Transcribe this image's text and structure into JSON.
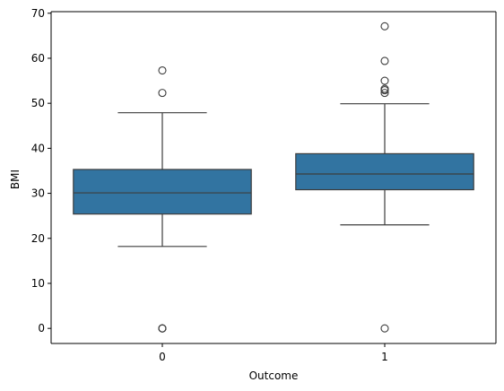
{
  "chart_data": {
    "type": "box",
    "xlabel": "Outcome",
    "ylabel": "BMI",
    "categories": [
      "0",
      "1"
    ],
    "ylim": [
      -3.35,
      70.35
    ],
    "yticks": [
      0,
      10,
      20,
      30,
      40,
      50,
      60,
      70
    ],
    "grid": false,
    "colors": {
      "box_fill": "#3274a1",
      "line": "#3d3d3d",
      "axis": "#000000"
    },
    "boxes": [
      {
        "category": "0",
        "whislo": 18.2,
        "q1": 25.4,
        "median": 30.1,
        "q3": 35.3,
        "whishi": 47.9,
        "fliers": [
          0,
          0,
          0,
          52.3,
          57.3
        ]
      },
      {
        "category": "1",
        "whislo": 23.0,
        "q1": 30.8,
        "median": 34.3,
        "q3": 38.8,
        "whishi": 49.9,
        "fliers": [
          0,
          52.3,
          52.9,
          53.2,
          55.0,
          59.4,
          67.1
        ]
      }
    ]
  }
}
